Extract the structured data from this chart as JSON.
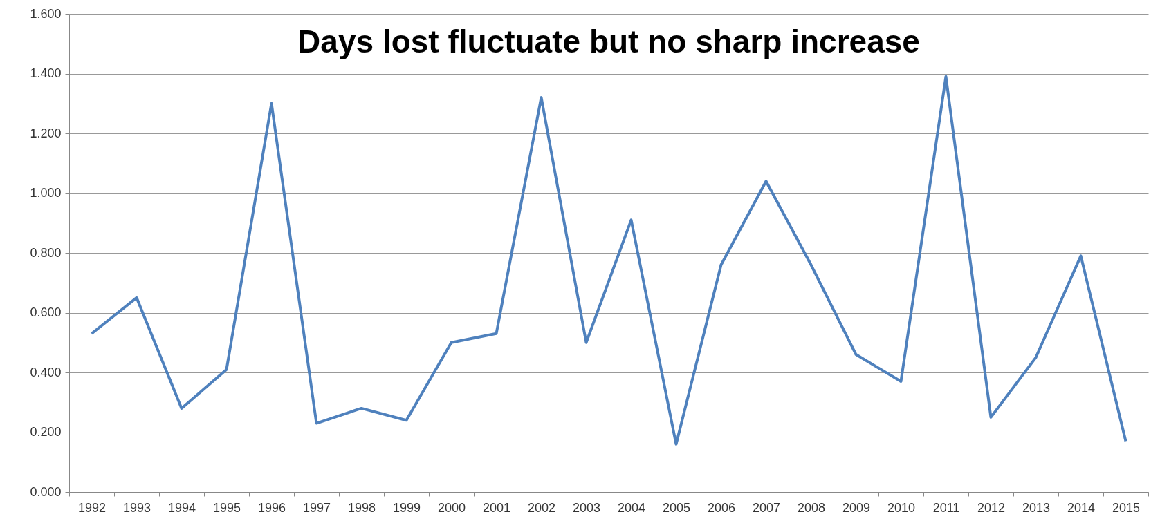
{
  "chart_data": {
    "type": "line",
    "title": "Days lost fluctuate but no sharp increase",
    "categories": [
      "1992",
      "1993",
      "1994",
      "1995",
      "1996",
      "1997",
      "1998",
      "1999",
      "2000",
      "2001",
      "2002",
      "2003",
      "2004",
      "2005",
      "2006",
      "2007",
      "2008",
      "2009",
      "2010",
      "2011",
      "2012",
      "2013",
      "2014",
      "2015"
    ],
    "series": [
      {
        "color": "#4f81bd",
        "values": [
          0.53,
          0.65,
          0.28,
          0.41,
          1.3,
          0.23,
          0.28,
          0.24,
          0.5,
          0.53,
          1.32,
          0.5,
          0.91,
          0.16,
          0.76,
          1.04,
          0.76,
          0.46,
          0.37,
          1.39,
          0.25,
          0.45,
          0.79,
          0.17
        ]
      }
    ],
    "ylim": [
      0,
      1.6
    ],
    "yticks": [
      {
        "value": 0,
        "label": "0.000"
      },
      {
        "value": 0.2,
        "label": "0.200"
      },
      {
        "value": 0.4,
        "label": "0.400"
      },
      {
        "value": 0.6,
        "label": "0.600"
      },
      {
        "value": 0.8,
        "label": "0.800"
      },
      {
        "value": 1.0,
        "label": "1.000"
      },
      {
        "value": 1.2,
        "label": "1.200"
      },
      {
        "value": 1.4,
        "label": "1.400"
      },
      {
        "value": 1.6,
        "label": "1.600"
      }
    ],
    "grid": "y",
    "legend": false,
    "marker": "none",
    "line_style": "solid"
  }
}
